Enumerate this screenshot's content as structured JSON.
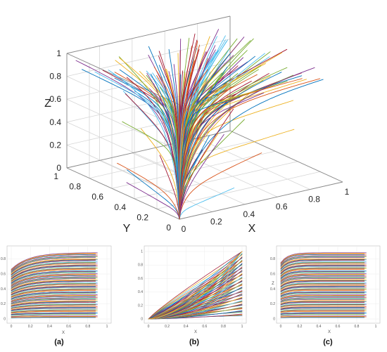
{
  "chart_data": [
    {
      "type": "line",
      "view": "3d",
      "description_axes": [
        "X",
        "Y",
        "Z"
      ],
      "xlabel": "X",
      "ylabel": "Y",
      "zlabel": "Z",
      "xlim": [
        0,
        1
      ],
      "ylim": [
        0,
        1
      ],
      "zlim": [
        0,
        1
      ],
      "x_ticks": [
        "0",
        "0.2",
        "0.4",
        "0.6",
        "0.8",
        "1"
      ],
      "y_ticks": [
        "0",
        "0.2",
        "0.4",
        "0.6",
        "0.8",
        "1"
      ],
      "z_ticks": [
        "0",
        "0.2",
        "0.4",
        "0.6",
        "0.8",
        "1"
      ],
      "grid": true,
      "series_note": "many multicolored trajectories fanning from origin",
      "trajectories": [
        {
          "x_end": 0.2,
          "y_end": 0.2,
          "z_end": 0.95
        },
        {
          "x_end": 0.4,
          "y_end": 0.3,
          "z_end": 0.95
        },
        {
          "x_end": 0.6,
          "y_end": 0.2,
          "z_end": 0.95
        },
        {
          "x_end": 0.8,
          "y_end": 0.4,
          "z_end": 0.95
        },
        {
          "x_end": 0.95,
          "y_end": 0.1,
          "z_end": 0.95
        },
        {
          "x_end": 0.95,
          "y_end": 0.5,
          "z_end": 0.95
        },
        {
          "x_end": 0.1,
          "y_end": 0.6,
          "z_end": 0.95
        },
        {
          "x_end": 0.3,
          "y_end": 0.8,
          "z_end": 0.95
        },
        {
          "x_end": 0.5,
          "y_end": 0.9,
          "z_end": 0.95
        },
        {
          "x_end": 0.9,
          "y_end": 0.9,
          "z_end": 0.95
        },
        {
          "x_end": 0.95,
          "y_end": 0.3,
          "z_end": 0.5
        },
        {
          "x_end": 0.95,
          "y_end": 0.7,
          "z_end": 0.3
        },
        {
          "x_end": 0.9,
          "y_end": 0.05,
          "z_end": 0.1
        },
        {
          "x_end": 0.95,
          "y_end": 0.95,
          "z_end": 0.6
        }
      ]
    },
    {
      "type": "line",
      "view": "X-Z projection",
      "caption": "(a)",
      "xlabel": "X",
      "xlim": [
        0,
        1
      ],
      "ylim": [
        0,
        0.9
      ],
      "x_ticks": [
        "0",
        "0.2",
        "0.4",
        "0.6",
        "0.8",
        "1"
      ],
      "y_ticks": [
        "0",
        "0.2",
        "0.4",
        "0.6",
        "0.8"
      ],
      "curve_levels": [
        0.02,
        0.06,
        0.1,
        0.14,
        0.18,
        0.22,
        0.26,
        0.3,
        0.34,
        0.38,
        0.42,
        0.46,
        0.5,
        0.54,
        0.58,
        0.62,
        0.66,
        0.7,
        0.74,
        0.78,
        0.82,
        0.86
      ]
    },
    {
      "type": "line",
      "view": "X-Y projection",
      "caption": "(b)",
      "xlabel": "X",
      "xlim": [
        0,
        1
      ],
      "ylim": [
        0,
        1
      ],
      "x_ticks": [
        "0",
        "0.2",
        "0.4",
        "0.6",
        "0.8",
        "1"
      ],
      "y_ticks": [
        "0",
        "0.2",
        "0.4",
        "0.6",
        "0.8",
        "1"
      ],
      "curve_levels": [
        0.05,
        0.1,
        0.15,
        0.2,
        0.25,
        0.3,
        0.35,
        0.4,
        0.45,
        0.5,
        0.55,
        0.6,
        0.65,
        0.7,
        0.75,
        0.8,
        0.85,
        0.9,
        0.95,
        1.0
      ]
    },
    {
      "type": "line",
      "view": "Y-Z projection",
      "caption": "(c)",
      "xlabel": "X",
      "ylabel": "Z",
      "xlim": [
        0,
        1
      ],
      "ylim": [
        0,
        0.9
      ],
      "x_ticks": [
        "0",
        "0.2",
        "0.4",
        "0.6",
        "0.8",
        "1"
      ],
      "y_ticks": [
        "0",
        "0.2",
        "0.4",
        "0.6",
        "0.8"
      ],
      "curve_levels": [
        0.02,
        0.06,
        0.1,
        0.14,
        0.18,
        0.22,
        0.26,
        0.3,
        0.34,
        0.38,
        0.42,
        0.46,
        0.5,
        0.54,
        0.58,
        0.62,
        0.66,
        0.7,
        0.74,
        0.78,
        0.82,
        0.86
      ]
    }
  ],
  "palette": [
    "#0072bd",
    "#d95319",
    "#edb120",
    "#7e2f8e",
    "#77ac30",
    "#4dbeee",
    "#a2142f"
  ],
  "captions": {
    "a": "(a)",
    "b": "(b)",
    "c": "(c)"
  }
}
